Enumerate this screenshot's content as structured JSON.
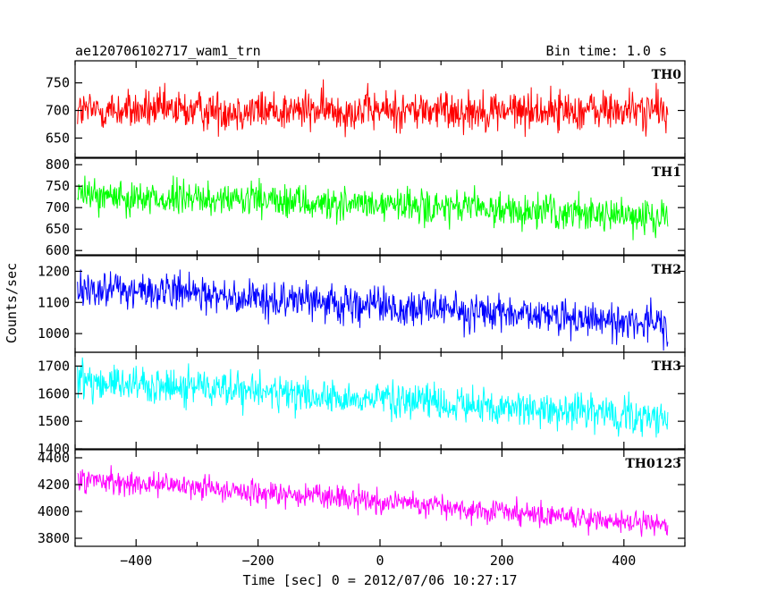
{
  "chart_data": {
    "type": "line",
    "title": "ae120706102717_wam1_trn",
    "subtitle": "Bin time: 1.0 s",
    "xlabel": "Time [sec] 0 = 2012/07/06 10:27:17",
    "ylabel": "Counts/sec",
    "xlim": [
      -500,
      500
    ],
    "x_ticks": [
      -400,
      -200,
      0,
      200,
      400
    ],
    "x_range_data": [
      -496,
      472
    ],
    "grid": false,
    "panels": [
      {
        "name": "TH0",
        "color": "#ff0000",
        "ylim": [
          615,
          790
        ],
        "y_ticks": [
          650,
          700,
          750
        ],
        "trend": {
          "x": [
            -496,
            472
          ],
          "y": [
            700,
            700
          ]
        },
        "noise_amplitude": 35,
        "values": []
      },
      {
        "name": "TH1",
        "color": "#00ff00",
        "ylim": [
          590,
          815
        ],
        "y_ticks": [
          600,
          650,
          700,
          750,
          800
        ],
        "trend": {
          "x": [
            -496,
            472
          ],
          "y": [
            730,
            680
          ]
        },
        "noise_amplitude": 38,
        "values": []
      },
      {
        "name": "TH2",
        "color": "#0000ff",
        "ylim": [
          940,
          1250
        ],
        "y_ticks": [
          1000,
          1100,
          1200
        ],
        "trend": {
          "x": [
            -496,
            472
          ],
          "y": [
            1150,
            1030
          ]
        },
        "noise_amplitude": 55,
        "values": []
      },
      {
        "name": "TH3",
        "color": "#00ffff",
        "ylim": [
          1400,
          1750
        ],
        "y_ticks": [
          1400,
          1500,
          1600,
          1700
        ],
        "trend": {
          "x": [
            -496,
            472
          ],
          "y": [
            1650,
            1510
          ]
        },
        "noise_amplitude": 62,
        "values": []
      },
      {
        "name": "TH0123",
        "color": "#ff00ff",
        "ylim": [
          3740,
          4460
        ],
        "y_ticks": [
          3800,
          4000,
          4200,
          4400
        ],
        "trend": {
          "x": [
            -496,
            472
          ],
          "y": [
            4250,
            3900
          ]
        },
        "noise_amplitude": 85,
        "values": []
      }
    ]
  }
}
